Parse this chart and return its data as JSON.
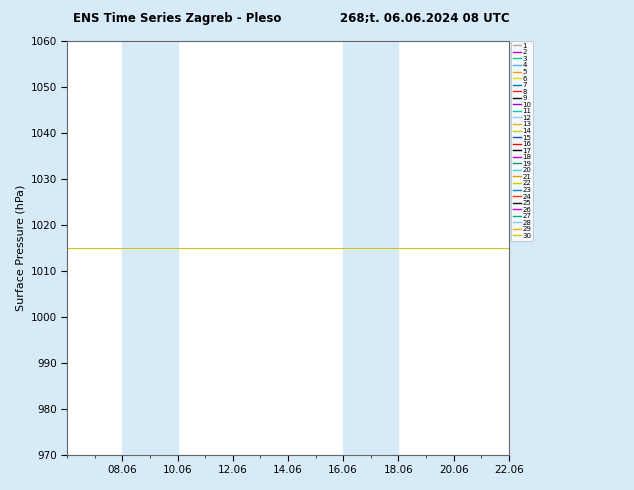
{
  "title_left": "ENS Time Series Zagreb - Pleso",
  "title_right": "268;t. 06.06.2024 08 UTC",
  "ylabel": "Surface Pressure (hPa)",
  "ylim": [
    970,
    1060
  ],
  "yticks": [
    970,
    980,
    990,
    1000,
    1010,
    1020,
    1030,
    1040,
    1050,
    1060
  ],
  "xtick_labels": [
    "08.06",
    "10.06",
    "12.06",
    "14.06",
    "16.06",
    "18.06",
    "20.06",
    "22.06"
  ],
  "xtick_positions": [
    2,
    4,
    6,
    8,
    10,
    12,
    14,
    16
  ],
  "shade_regions": [
    {
      "start": 2,
      "end": 4
    },
    {
      "start": 10,
      "end": 12
    }
  ],
  "shade_color": "#d6eaf8",
  "xlim": [
    0,
    16
  ],
  "member_colors": [
    "#aaaaaa",
    "#cc00cc",
    "#00cc99",
    "#55aaff",
    "#ff9900",
    "#dddd00",
    "#0077cc",
    "#ff2200",
    "#111111",
    "#9900cc",
    "#00ccaa",
    "#88ccff",
    "#ffaa00",
    "#cccc00",
    "#0055cc",
    "#ff0000",
    "#000000",
    "#cc00cc",
    "#009966",
    "#44ccff",
    "#dd9900",
    "#cccc00",
    "#0088cc",
    "#ff3300",
    "#111111",
    "#cc00cc",
    "#00aa88",
    "#88ccff",
    "#ffaa00",
    "#cccc00"
  ],
  "figure_bg": "#d6eaf8",
  "plot_bg": "#ffffff",
  "title_fontsize": 8.5,
  "tick_fontsize": 7.5,
  "ylabel_fontsize": 8,
  "legend_fontsize": 5,
  "line_width": 0.6
}
